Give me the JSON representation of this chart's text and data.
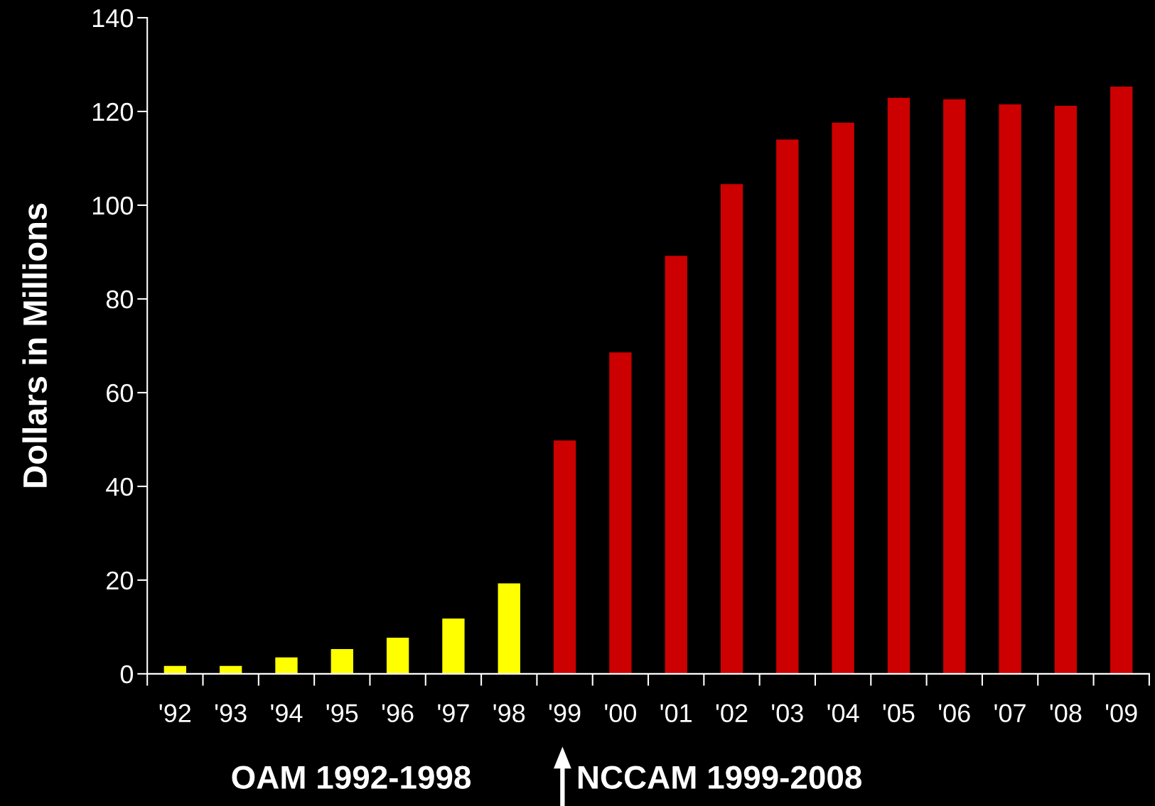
{
  "chart_data": {
    "type": "bar",
    "ylabel": "Dollars in Millions",
    "categories": [
      "'92",
      "'93",
      "'94",
      "'95",
      "'96",
      "'97",
      "'98",
      "'99",
      "'00",
      "'01",
      "'02",
      "'03",
      "'04",
      "'05",
      "'06",
      "'07",
      "'08",
      "'09"
    ],
    "values": [
      1.7,
      1.7,
      3.5,
      5.3,
      7.7,
      11.8,
      19.3,
      49.8,
      68.6,
      89.2,
      104.5,
      114.0,
      117.6,
      122.9,
      122.6,
      121.5,
      121.2,
      125.3
    ],
    "colors": [
      "#ffff00",
      "#ffff00",
      "#ffff00",
      "#ffff00",
      "#ffff00",
      "#ffff00",
      "#ffff00",
      "#cc0000",
      "#cc0000",
      "#cc0000",
      "#cc0000",
      "#cc0000",
      "#cc0000",
      "#cc0000",
      "#cc0000",
      "#cc0000",
      "#cc0000",
      "#cc0000"
    ],
    "ylim": [
      0,
      140
    ],
    "yticks": [
      0,
      20,
      40,
      60,
      80,
      100,
      120,
      140
    ],
    "grid": false,
    "annotations": [
      "OAM 1992-1998",
      "NCCAM 1999-2008"
    ]
  }
}
